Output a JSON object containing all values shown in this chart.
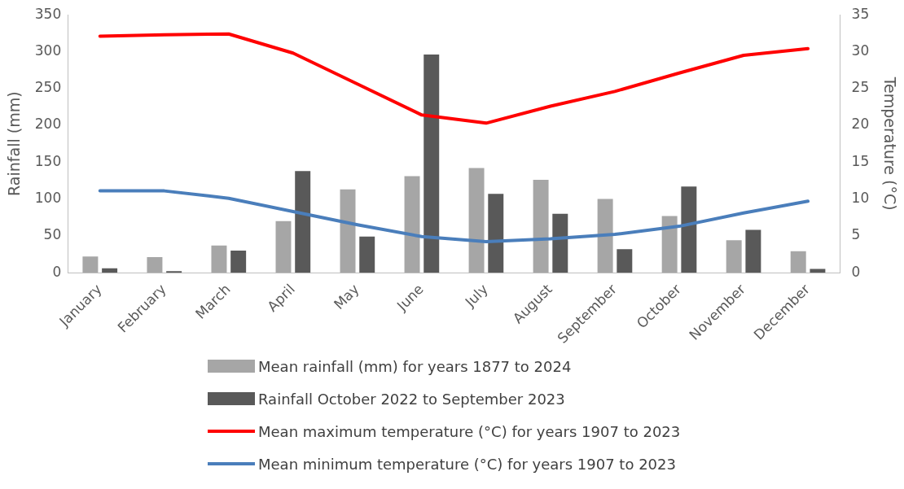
{
  "chart_data": {
    "type": "bar",
    "ylabel": "Rainfall (mm)",
    "y2label": "Temperature (°C)",
    "categories": [
      "January",
      "February",
      "March",
      "April",
      "May",
      "June",
      "July",
      "August",
      "September",
      "October",
      "November",
      "December"
    ],
    "series": [
      {
        "name": "Mean rainfall (mm) for years 1877 to 2024",
        "color": "#a6a6a6",
        "values": [
          22,
          21,
          37,
          70,
          113,
          131,
          142,
          126,
          100,
          77,
          44,
          29
        ]
      },
      {
        "name": "Rainfall October 2022 to September 2023",
        "color": "#595959",
        "values": [
          6,
          2,
          30,
          138,
          49,
          296,
          107,
          80,
          32,
          117,
          58,
          5
        ]
      },
      {
        "name": "Mean maximum temperature (°C) for years 1907 to 2023",
        "type": "line",
        "axis": "y2",
        "color": "#ff0000",
        "values": [
          32.1,
          32.3,
          32.4,
          29.8,
          25.6,
          21.4,
          20.3,
          22.6,
          24.6,
          27.1,
          29.5,
          30.4
        ]
      },
      {
        "name": "Mean minimum temperature (°C) for years 1907 to 2023",
        "type": "line",
        "axis": "y2",
        "color": "#4a7ebb",
        "values": [
          11.1,
          11.1,
          10.1,
          8.3,
          6.5,
          4.9,
          4.2,
          4.6,
          5.2,
          6.3,
          8.1,
          9.7
        ]
      }
    ],
    "ylim": [
      0,
      350
    ],
    "yticks": [
      0,
      50,
      100,
      150,
      200,
      250,
      300,
      350
    ],
    "y2lim": [
      0,
      35
    ],
    "y2ticks": [
      0,
      5,
      10,
      15,
      20,
      25,
      30,
      35
    ],
    "grid": false,
    "legend": "bottom",
    "marker": "none"
  }
}
